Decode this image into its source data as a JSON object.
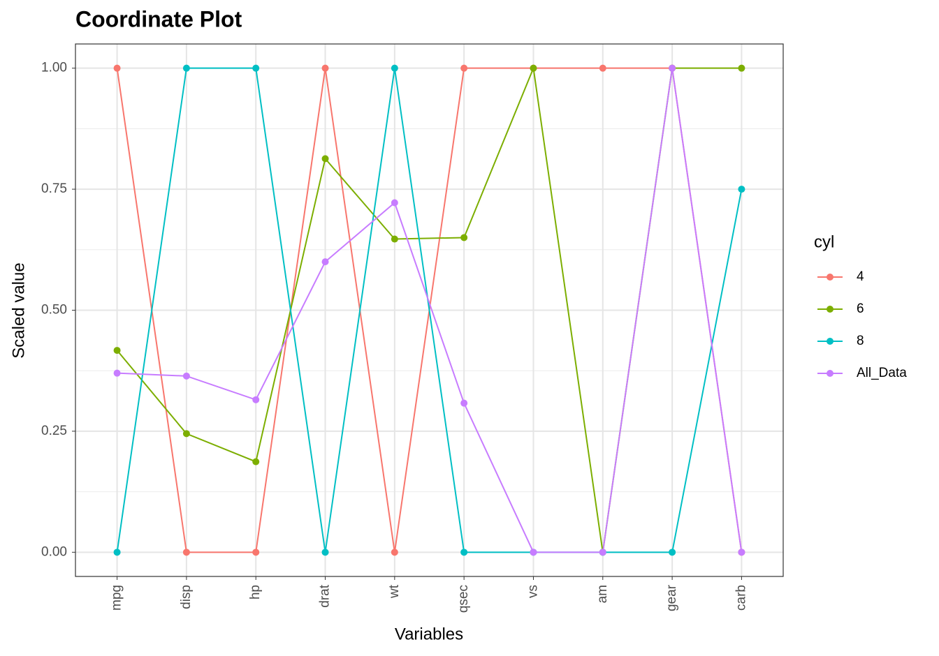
{
  "chart_data": {
    "type": "line",
    "title": "Coordinate Plot",
    "x_label": "Variables",
    "y_label": "Scaled value",
    "categories": [
      "mpg",
      "disp",
      "hp",
      "drat",
      "wt",
      "qsec",
      "vs",
      "am",
      "gear",
      "carb"
    ],
    "legend_title": "cyl",
    "legend": "right",
    "grid": true,
    "ylim": [
      -0.05,
      1.05
    ],
    "yticks": [
      {
        "value": 0,
        "label": "0.00"
      },
      {
        "value": 0.25,
        "label": "0.25"
      },
      {
        "value": 0.5,
        "label": "0.50"
      },
      {
        "value": 0.75,
        "label": "0.75"
      },
      {
        "value": 1,
        "label": "1.00"
      }
    ],
    "series": [
      {
        "name": "4",
        "color": "#F8766D",
        "values": [
          1,
          0,
          0,
          1,
          0,
          1,
          1,
          1,
          1,
          0
        ]
      },
      {
        "name": "6",
        "color": "#7CAE00",
        "values": [
          0.417,
          0.245,
          0.187,
          0.813,
          0.647,
          0.65,
          1,
          0,
          1,
          1
        ]
      },
      {
        "name": "8",
        "color": "#00BFC4",
        "values": [
          0,
          1,
          1,
          0,
          1,
          0,
          0,
          0,
          0,
          0.75
        ]
      },
      {
        "name": "All_Data",
        "color": "#C77CFF",
        "values": [
          0.37,
          0.364,
          0.315,
          0.6,
          0.722,
          0.308,
          0,
          0,
          1,
          0
        ]
      }
    ]
  }
}
